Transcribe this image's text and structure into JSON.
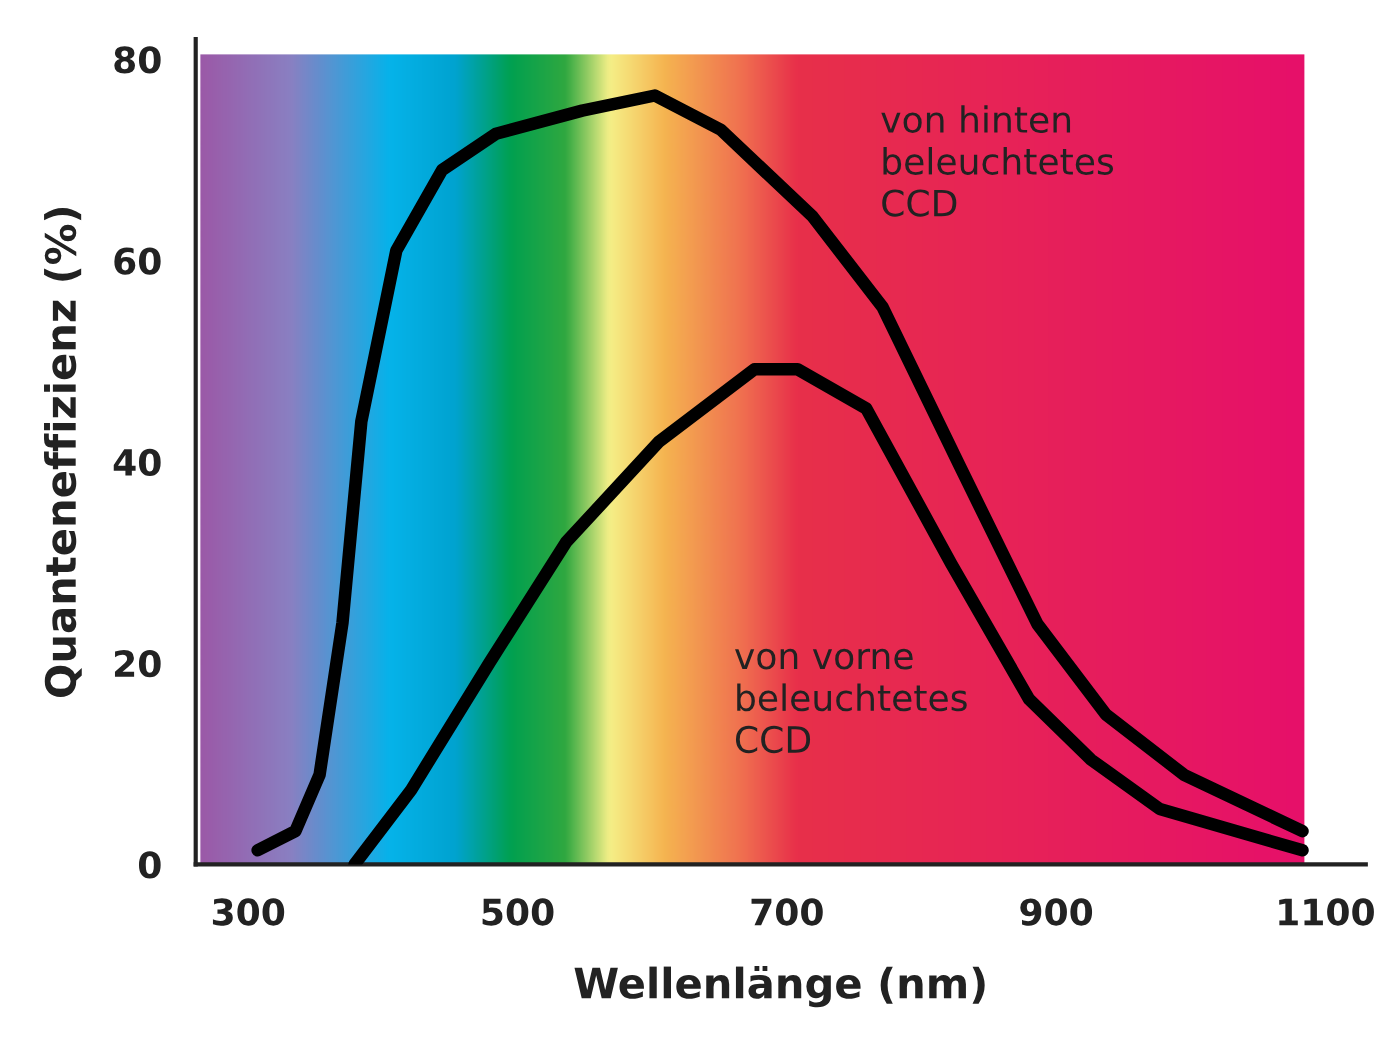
{
  "chart_data": {
    "type": "line",
    "xlabel": "Wellenlänge (nm)",
    "ylabel": "Quanteneffizienz (%)",
    "xlim": [
      261,
      1130
    ],
    "ylim": [
      0,
      82
    ],
    "xticks": [
      300,
      500,
      700,
      900,
      1100
    ],
    "yticks": [
      0,
      20,
      40,
      60,
      80
    ],
    "grid": false,
    "legend": false,
    "marker": "none",
    "line_style": "solid",
    "series": [
      {
        "name": "von hinten\nbeleuchtetes\nCCD",
        "color": "#000000",
        "x": [
          307,
          335,
          353,
          370,
          384,
          410,
          444,
          484,
          548,
          602,
          651,
          719,
          771,
          828,
          886,
          937,
          995,
          1083
        ],
        "values": [
          1.4,
          3.3,
          8.9,
          24,
          44,
          61,
          69,
          72.6,
          74.9,
          76.4,
          73,
          64.4,
          55.4,
          39.7,
          23.9,
          14.9,
          8.9,
          3.3
        ]
      },
      {
        "name": "von vorne\nbeleuchtetes\nCCD",
        "color": "#000000",
        "x": [
          379,
          421,
          479,
          536,
          605,
          676,
          708,
          759,
          822,
          880,
          926,
          977,
          1083
        ],
        "values": [
          0,
          7.4,
          20,
          32,
          42,
          49.2,
          49.2,
          45.3,
          29.9,
          16.4,
          10.4,
          5.5,
          1.4
        ]
      }
    ]
  }
}
